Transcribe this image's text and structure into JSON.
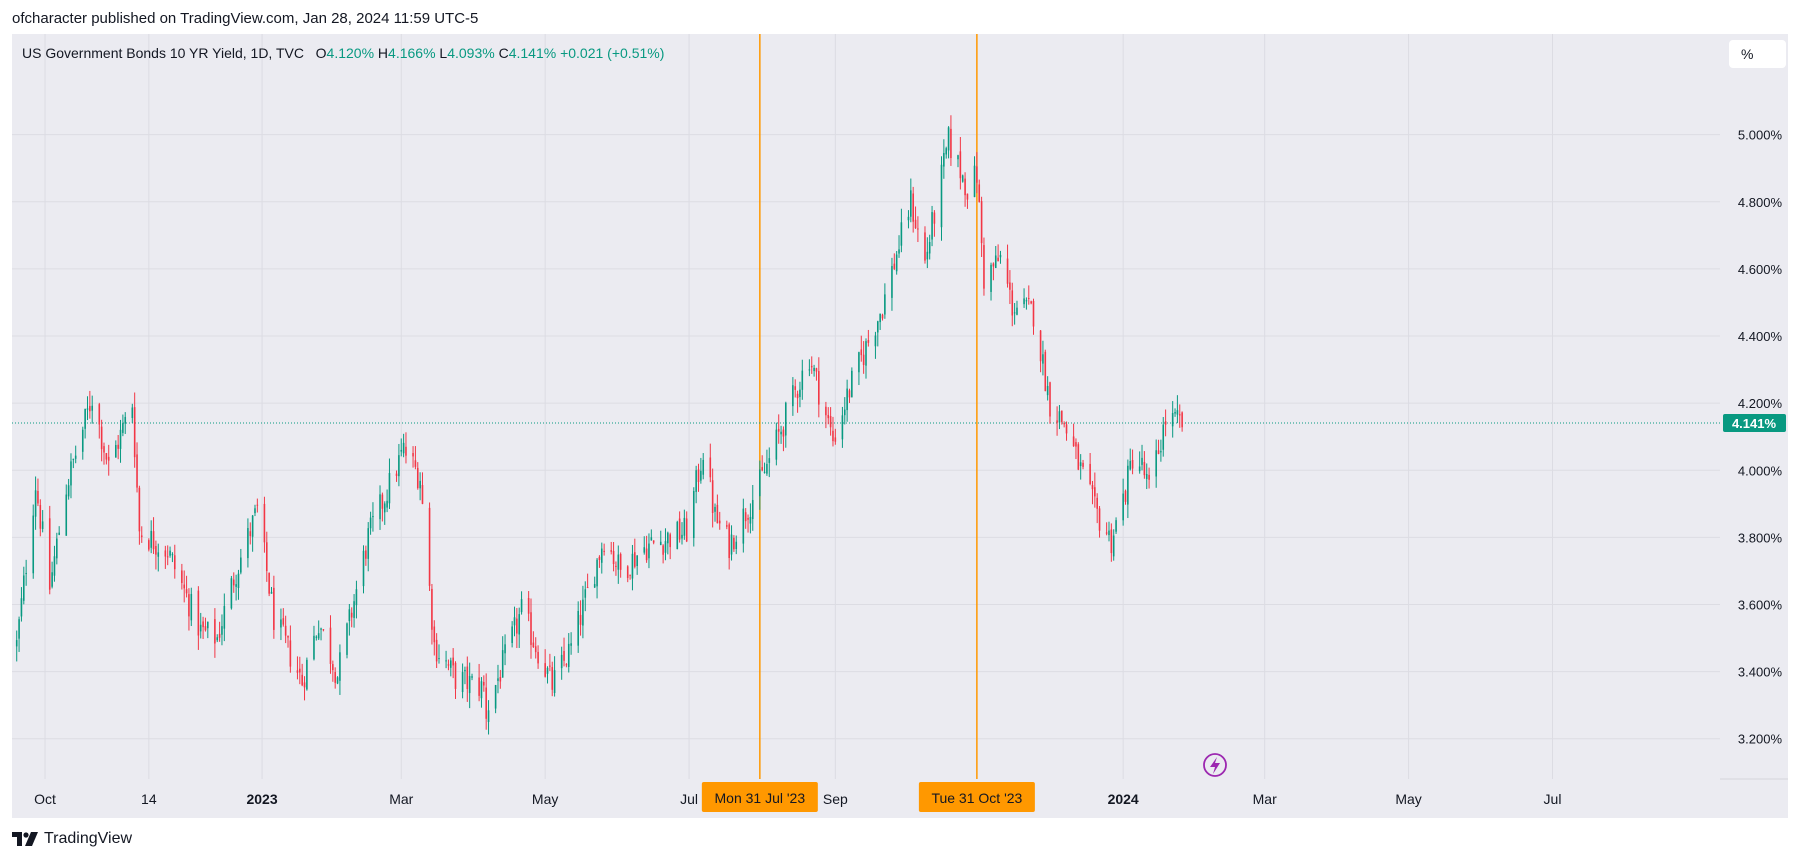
{
  "header": {
    "published_text": "ofcharacter published on TradingView.com, Jan 28, 2024 11:59 UTC-5"
  },
  "legend": {
    "symbol": "US Government Bonds 10 YR Yield, 1D, TVC",
    "open_label": "O",
    "open": "4.120%",
    "high_label": "H",
    "high": "4.166%",
    "low_label": "L",
    "low": "4.093%",
    "close_label": "C",
    "close": "4.141%",
    "change": "+0.021 (+0.51%)"
  },
  "unit_button": "%",
  "footer": {
    "brand": "TradingView"
  },
  "colors": {
    "up": "#089981",
    "down": "#f23645",
    "marker": "#ff9800",
    "background": "#ebebf1",
    "price_line": "#089981",
    "lightning": "#9c27b0"
  },
  "icons": [
    "lightning-icon",
    "tradingview-logo-icon"
  ],
  "chart_data": {
    "type": "candlestick",
    "y_ticks": [
      "5.000%",
      "4.800%",
      "4.600%",
      "4.400%",
      "4.200%",
      "4.000%",
      "3.800%",
      "3.600%",
      "3.400%",
      "3.200%"
    ],
    "y_tick_values": [
      5.0,
      4.8,
      4.6,
      4.4,
      4.2,
      4.0,
      3.8,
      3.6,
      3.4,
      3.2
    ],
    "ylim": [
      3.08,
      5.3
    ],
    "x_ticks": [
      {
        "label": "Oct",
        "date": "2022-10-01",
        "bold": false
      },
      {
        "label": "14",
        "date": "2022-11-14",
        "bold": false
      },
      {
        "label": "2023",
        "date": "2023-01-01",
        "bold": true
      },
      {
        "label": "Mar",
        "date": "2023-03-01",
        "bold": false
      },
      {
        "label": "May",
        "date": "2023-05-01",
        "bold": false
      },
      {
        "label": "Jul",
        "date": "2023-07-01",
        "bold": false
      },
      {
        "label": "Sep",
        "date": "2023-09-01",
        "bold": false
      },
      {
        "label": "2024",
        "date": "2024-01-01",
        "bold": true
      },
      {
        "label": "Mar",
        "date": "2024-03-01",
        "bold": false
      },
      {
        "label": "May",
        "date": "2024-05-01",
        "bold": false
      },
      {
        "label": "Jul",
        "date": "2024-07-01",
        "bold": false
      }
    ],
    "xlim": [
      "2022-09-17",
      "2024-09-10"
    ],
    "last_price": 4.141,
    "last_price_label": "4.141%",
    "vertical_markers": [
      {
        "date": "2023-07-31",
        "label": "Mon 31 Jul '23"
      },
      {
        "date": "2023-10-31",
        "label": "Tue 31 Oct '23"
      }
    ],
    "candles_start": "2022-09-19",
    "candles_end": "2024-01-26",
    "close_path": [
      [
        "2022-09-19",
        3.48
      ],
      [
        "2022-09-27",
        3.96
      ],
      [
        "2022-10-03",
        3.65
      ],
      [
        "2022-10-10",
        3.95
      ],
      [
        "2022-10-21",
        4.22
      ],
      [
        "2022-10-28",
        4.01
      ],
      [
        "2022-11-07",
        4.2
      ],
      [
        "2022-11-10",
        3.82
      ],
      [
        "2022-11-22",
        3.76
      ],
      [
        "2022-12-06",
        3.52
      ],
      [
        "2022-12-13",
        3.5
      ],
      [
        "2022-12-20",
        3.68
      ],
      [
        "2022-12-30",
        3.88
      ],
      [
        "2023-01-06",
        3.56
      ],
      [
        "2023-01-18",
        3.37
      ],
      [
        "2023-01-25",
        3.55
      ],
      [
        "2023-02-02",
        3.39
      ],
      [
        "2023-02-15",
        3.8
      ],
      [
        "2023-03-02",
        4.06
      ],
      [
        "2023-03-09",
        3.98
      ],
      [
        "2023-03-15",
        3.48
      ],
      [
        "2023-03-24",
        3.38
      ],
      [
        "2023-04-05",
        3.35
      ],
      [
        "2023-04-06",
        3.28
      ],
      [
        "2023-04-21",
        3.58
      ],
      [
        "2023-05-04",
        3.36
      ],
      [
        "2023-05-12",
        3.47
      ],
      [
        "2023-05-26",
        3.8
      ],
      [
        "2023-06-02",
        3.7
      ],
      [
        "2023-06-12",
        3.77
      ],
      [
        "2023-06-30",
        3.82
      ],
      [
        "2023-07-07",
        4.06
      ],
      [
        "2023-07-12",
        3.86
      ],
      [
        "2023-07-18",
        3.78
      ],
      [
        "2023-07-31",
        3.96
      ],
      [
        "2023-08-04",
        4.03
      ],
      [
        "2023-08-11",
        4.16
      ],
      [
        "2023-08-21",
        4.34
      ],
      [
        "2023-08-31",
        4.09
      ],
      [
        "2023-09-08",
        4.26
      ],
      [
        "2023-09-21",
        4.49
      ],
      [
        "2023-10-03",
        4.8
      ],
      [
        "2023-10-09",
        4.62
      ],
      [
        "2023-10-19",
        4.98
      ],
      [
        "2023-10-27",
        4.84
      ],
      [
        "2023-10-31",
        4.88
      ],
      [
        "2023-11-03",
        4.57
      ],
      [
        "2023-11-10",
        4.63
      ],
      [
        "2023-11-15",
        4.49
      ],
      [
        "2023-11-24",
        4.47
      ],
      [
        "2023-12-01",
        4.2
      ],
      [
        "2023-12-07",
        4.14
      ],
      [
        "2023-12-13",
        4.02
      ],
      [
        "2023-12-20",
        3.88
      ],
      [
        "2023-12-27",
        3.79
      ],
      [
        "2024-01-02",
        3.94
      ],
      [
        "2024-01-05",
        4.04
      ],
      [
        "2024-01-09",
        4.01
      ],
      [
        "2024-01-12",
        3.94
      ],
      [
        "2024-01-19",
        4.15
      ],
      [
        "2024-01-26",
        4.14
      ]
    ]
  }
}
